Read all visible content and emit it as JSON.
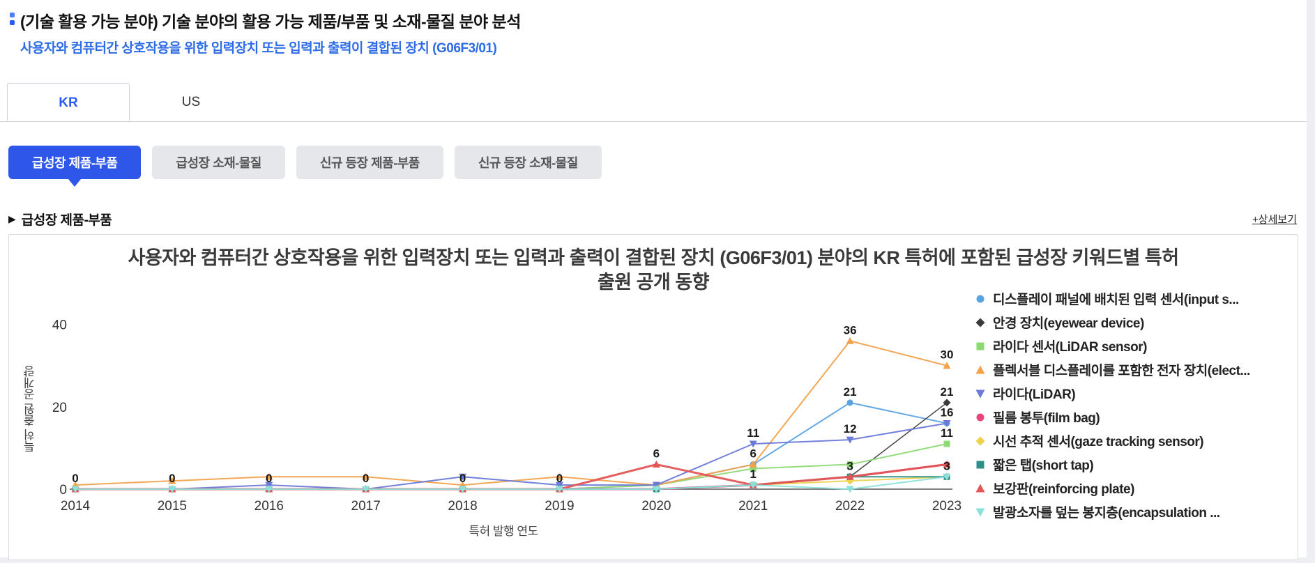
{
  "header": {
    "title": "(기술 활용 가능 분야) 기술 분야의 활용 가능 제품/부품 및 소재-물질 분야 분석",
    "subtitle": "사용자와 컴퓨터간 상호작용을 위한 입력장치 또는 입력과 출력이 결합된 장치 (G06F3/01)"
  },
  "tabs": [
    {
      "label": "KR",
      "active": true
    },
    {
      "label": "US",
      "active": false
    }
  ],
  "filters": [
    {
      "label": "급성장 제품-부품",
      "active": true
    },
    {
      "label": "급성장 소재-물질",
      "active": false
    },
    {
      "label": "신규 등장 제품-부품",
      "active": false
    },
    {
      "label": "신규 등장 소재-물질",
      "active": false
    }
  ],
  "section": {
    "title": "급성장 제품-부품",
    "detail_link": "+상세보기"
  },
  "colors": {
    "accent": "#2e56e9",
    "subtitle_blue": "#2e6be6",
    "inactive_button_bg": "#e6e7eb"
  },
  "chart_data": {
    "type": "line",
    "title": "사용자와 컴퓨터간 상호작용을 위한 입력장치 또는 입력과 출력이 결합된 장치 (G06F3/01) 분야의 KR 특허에 포함된 급성장 키워드별 특허 출원 공개 동향",
    "xlabel": "특허 발행 연도",
    "ylabel": "특허 출원 공개량",
    "x": [
      2014,
      2015,
      2016,
      2017,
      2018,
      2019,
      2020,
      2021,
      2022,
      2023
    ],
    "ylim": [
      0,
      40
    ],
    "yticks": [
      0,
      20,
      40
    ],
    "grid": false,
    "legend_position": "right",
    "series": [
      {
        "name": "디스플레이 패널에 배치된 입력 센서(input s...",
        "color": "#5ba3e0",
        "marker": "circle",
        "width": 2,
        "values": [
          0,
          0,
          0,
          0,
          0,
          0,
          1,
          6,
          21,
          16
        ]
      },
      {
        "name": "안경 장치(eyewear device)",
        "color": "#3a3a3a",
        "marker": "diamond",
        "width": 1.5,
        "values": [
          0,
          0,
          0,
          0,
          0,
          0,
          0,
          1,
          3,
          21
        ]
      },
      {
        "name": "라이다 센서(LiDAR sensor)",
        "color": "#8ed973",
        "marker": "square",
        "width": 2,
        "values": [
          0,
          0,
          0,
          0,
          0,
          0,
          1,
          5,
          6,
          11
        ]
      },
      {
        "name": "플렉서블 디스플레이를 포함한 전자 장치(elect...",
        "color": "#f2a24c",
        "marker": "triangle-up",
        "width": 2,
        "values": [
          1,
          2,
          3,
          3,
          1,
          3,
          1,
          6,
          36,
          30
        ]
      },
      {
        "name": "라이다(LiDAR)",
        "color": "#6b79d8",
        "marker": "triangle-down",
        "width": 2,
        "values": [
          0,
          0,
          1,
          0,
          3,
          1,
          1,
          11,
          12,
          16
        ]
      },
      {
        "name": "필름 봉투(film bag)",
        "color": "#e8467a",
        "marker": "circle",
        "width": 3,
        "values": [
          0,
          0,
          0,
          0,
          0,
          0,
          0,
          1,
          3,
          6
        ]
      },
      {
        "name": "시선 추적 센서(gaze tracking sensor)",
        "color": "#ecd24e",
        "marker": "diamond",
        "width": 2,
        "values": [
          0,
          0,
          0,
          0,
          0,
          0,
          0,
          1,
          2,
          3
        ]
      },
      {
        "name": "짧은 탭(short tap)",
        "color": "#2e8f86",
        "marker": "square",
        "width": 2,
        "values": [
          0,
          0,
          0,
          0,
          0,
          0,
          0,
          1,
          3,
          3
        ]
      },
      {
        "name": "보강판(reinforcing plate)",
        "color": "#e25656",
        "marker": "triangle-up",
        "width": 3,
        "values": [
          0,
          0,
          0,
          0,
          0,
          0,
          6,
          1,
          3,
          6
        ]
      },
      {
        "name": "발광소자를 덮는 봉지층(encapsulation ...",
        "color": "#8ce0dc",
        "marker": "triangle-down",
        "width": 2,
        "values": [
          0,
          0,
          0,
          0,
          0,
          0,
          0,
          1,
          0,
          3
        ]
      }
    ],
    "point_labels": [
      {
        "year": 2014,
        "value": 0
      },
      {
        "year": 2015,
        "value": 0
      },
      {
        "year": 2016,
        "value": 0
      },
      {
        "year": 2017,
        "value": 0
      },
      {
        "year": 2018,
        "value": 0
      },
      {
        "year": 2019,
        "value": 0
      },
      {
        "year": 2020,
        "value": 6
      },
      {
        "year": 2021,
        "value": 11
      },
      {
        "year": 2021,
        "value": 6
      },
      {
        "year": 2021,
        "value": 1
      },
      {
        "year": 2022,
        "value": 36
      },
      {
        "year": 2022,
        "value": 21
      },
      {
        "year": 2022,
        "value": 12
      },
      {
        "year": 2022,
        "value": 3
      },
      {
        "year": 2023,
        "value": 30
      },
      {
        "year": 2023,
        "value": 21
      },
      {
        "year": 2023,
        "value": 16
      },
      {
        "year": 2023,
        "value": 11
      },
      {
        "year": 2023,
        "value": 3
      }
    ]
  }
}
